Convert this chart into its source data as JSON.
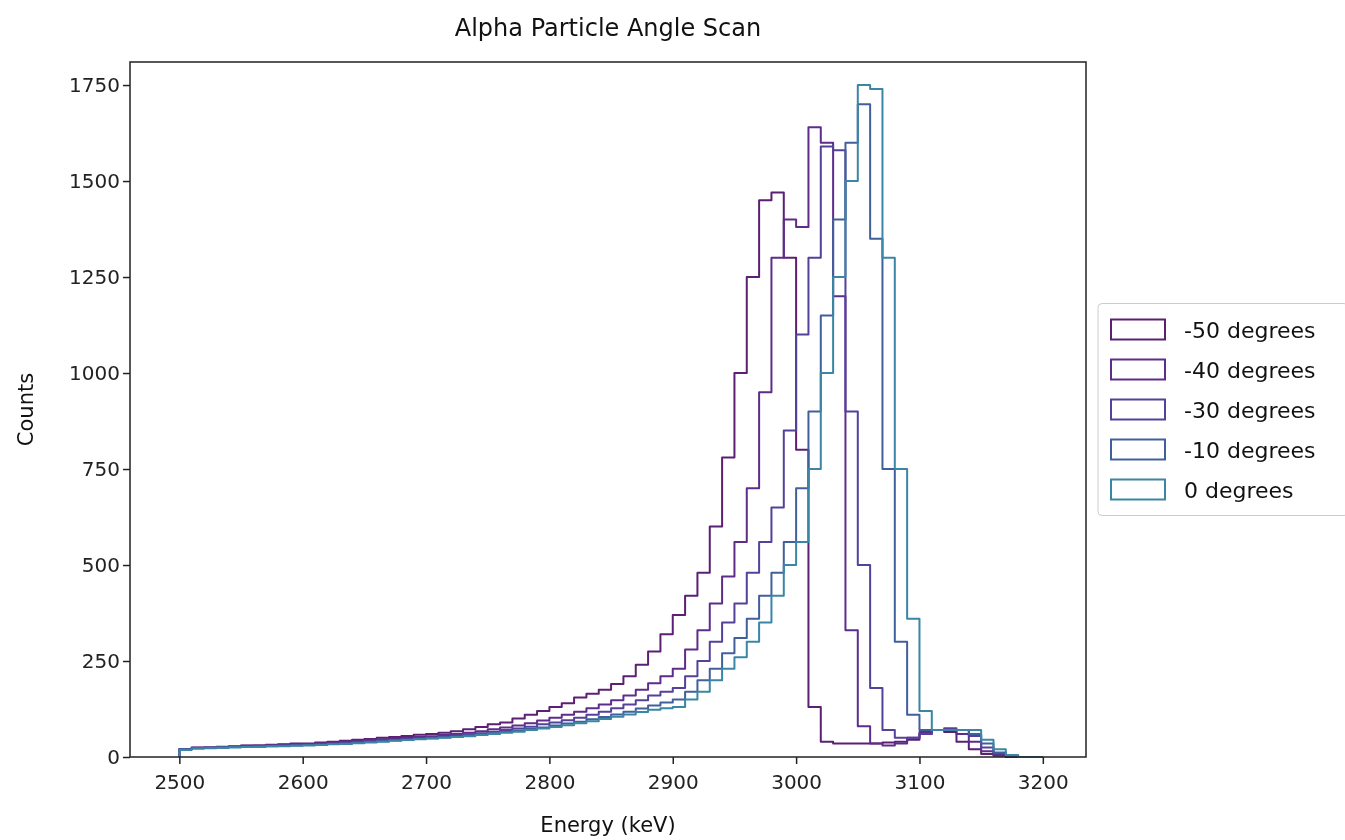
{
  "chart_data": {
    "type": "histogram",
    "title": "Alpha Particle Angle Scan",
    "xlabel": "Energy (keV)",
    "ylabel": "Counts",
    "bins": [
      2500,
      2510,
      2520,
      2530,
      2540,
      2550,
      2560,
      2570,
      2580,
      2590,
      2600,
      2610,
      2620,
      2630,
      2640,
      2650,
      2660,
      2670,
      2680,
      2690,
      2700,
      2710,
      2720,
      2730,
      2740,
      2750,
      2760,
      2770,
      2780,
      2790,
      2800,
      2810,
      2820,
      2830,
      2840,
      2850,
      2860,
      2870,
      2880,
      2890,
      2900,
      2910,
      2920,
      2930,
      2940,
      2950,
      2960,
      2970,
      2980,
      2990,
      3000,
      3010,
      3020,
      3030,
      3040,
      3050,
      3060,
      3070,
      3080,
      3090,
      3100,
      3110,
      3120,
      3130,
      3140,
      3150,
      3160,
      3170,
      3180,
      3190,
      3200
    ],
    "series": [
      {
        "name": "-50 degrees",
        "color": "#5b1f73",
        "values": [
          20,
          25,
          25,
          27,
          28,
          30,
          30,
          32,
          33,
          35,
          35,
          38,
          40,
          42,
          45,
          47,
          50,
          52,
          55,
          58,
          60,
          63,
          67,
          72,
          78,
          85,
          90,
          100,
          110,
          120,
          130,
          140,
          155,
          165,
          175,
          190,
          210,
          240,
          275,
          320,
          370,
          420,
          480,
          600,
          780,
          1000,
          1250,
          1450,
          1470,
          1300,
          800,
          130,
          40,
          35,
          35,
          35,
          35,
          38,
          40,
          45,
          60,
          70,
          65,
          40,
          20,
          8,
          3,
          0,
          0,
          0
        ]
      },
      {
        "name": "-40 degrees",
        "color": "#5e2d8a",
        "values": [
          20,
          24,
          25,
          26,
          27,
          29,
          30,
          31,
          32,
          33,
          34,
          36,
          38,
          40,
          42,
          44,
          46,
          48,
          50,
          52,
          54,
          57,
          60,
          63,
          67,
          72,
          77,
          82,
          88,
          95,
          102,
          110,
          118,
          127,
          137,
          148,
          160,
          175,
          192,
          210,
          230,
          280,
          330,
          400,
          470,
          560,
          700,
          950,
          1300,
          1400,
          1380,
          1640,
          1600,
          1200,
          330,
          80,
          35,
          30,
          35,
          50,
          65,
          70,
          70,
          60,
          40,
          15,
          5,
          0,
          0,
          0
        ]
      },
      {
        "name": "-30 degrees",
        "color": "#54419a",
        "values": [
          20,
          23,
          24,
          25,
          26,
          27,
          28,
          29,
          30,
          31,
          32,
          34,
          35,
          37,
          39,
          41,
          43,
          45,
          47,
          49,
          51,
          53,
          56,
          59,
          62,
          66,
          70,
          74,
          79,
          85,
          90,
          96,
          102,
          110,
          118,
          127,
          137,
          148,
          160,
          170,
          180,
          210,
          250,
          300,
          350,
          400,
          480,
          560,
          650,
          850,
          1100,
          1300,
          1590,
          1580,
          900,
          500,
          180,
          70,
          50,
          50,
          60,
          70,
          75,
          70,
          55,
          25,
          10,
          3,
          0,
          0
        ]
      },
      {
        "name": "-10 degrees",
        "color": "#40609c",
        "values": [
          20,
          23,
          24,
          25,
          26,
          27,
          27,
          28,
          29,
          30,
          31,
          32,
          34,
          35,
          37,
          39,
          41,
          43,
          45,
          47,
          49,
          51,
          53,
          56,
          59,
          62,
          65,
          69,
          73,
          77,
          82,
          87,
          92,
          98,
          104,
          111,
          118,
          126,
          134,
          142,
          150,
          170,
          200,
          230,
          270,
          310,
          360,
          420,
          480,
          560,
          700,
          900,
          1150,
          1400,
          1600,
          1700,
          1350,
          750,
          300,
          110,
          70,
          70,
          70,
          70,
          60,
          35,
          12,
          3,
          0,
          0
        ]
      },
      {
        "name": "0 degrees",
        "color": "#3a86a4",
        "values": [
          18,
          22,
          23,
          24,
          25,
          26,
          27,
          28,
          28,
          29,
          30,
          31,
          33,
          34,
          36,
          38,
          40,
          42,
          44,
          46,
          48,
          50,
          52,
          54,
          57,
          60,
          63,
          66,
          70,
          74,
          78,
          83,
          88,
          93,
          99,
          105,
          111,
          117,
          123,
          127,
          130,
          150,
          170,
          200,
          230,
          260,
          300,
          350,
          420,
          500,
          560,
          750,
          1000,
          1250,
          1500,
          1750,
          1740,
          1300,
          750,
          360,
          120,
          70,
          70,
          70,
          70,
          45,
          20,
          5,
          0,
          0
        ]
      }
    ],
    "xlim": [
      2460,
      3235
    ],
    "ylim": [
      0,
      1810
    ],
    "xticks": [
      2500,
      2600,
      2700,
      2800,
      2900,
      3000,
      3100,
      3200
    ],
    "yticks": [
      0,
      250,
      500,
      750,
      1000,
      1250,
      1500,
      1750
    ],
    "legend": "right"
  }
}
